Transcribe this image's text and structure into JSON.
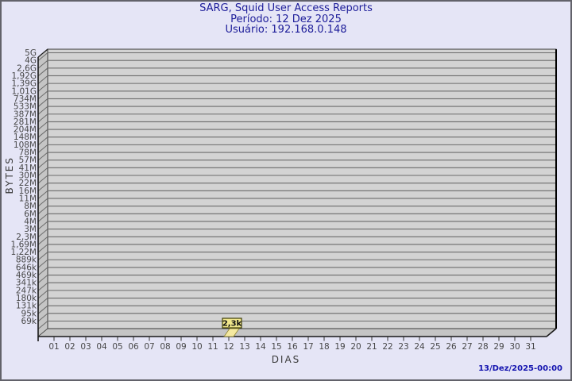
{
  "window": {
    "background": "#e5e5f6",
    "border_color": "#62626a"
  },
  "header": {
    "title": "SARG, Squid User Access Reports",
    "period": "Período: 12 Dez 2025",
    "user": "Usuário: 192.168.0.148",
    "color": "#1c1c99"
  },
  "footer": {
    "timestamp": "13/Dez/2025-00:00",
    "color": "#1515b0"
  },
  "chart_data": {
    "type": "bar",
    "title": "SARG, Squid User Access Reports",
    "subtitle": [
      "Período: 12 Dez 2025",
      "Usuário: 192.168.0.148"
    ],
    "xlabel": "DIAS",
    "ylabel": "BYTES",
    "scale": "log",
    "ylim_labels": [
      "69k",
      "5G"
    ],
    "grid": true,
    "legend": false,
    "categories": [
      "01",
      "02",
      "03",
      "04",
      "05",
      "06",
      "07",
      "08",
      "09",
      "10",
      "11",
      "12",
      "13",
      "14",
      "15",
      "16",
      "17",
      "18",
      "19",
      "20",
      "21",
      "22",
      "23",
      "24",
      "25",
      "26",
      "27",
      "28",
      "29",
      "30",
      "31"
    ],
    "values": [
      0,
      0,
      0,
      0,
      0,
      0,
      0,
      0,
      0,
      0,
      0,
      2300,
      0,
      0,
      0,
      0,
      0,
      0,
      0,
      0,
      0,
      0,
      0,
      0,
      0,
      0,
      0,
      0,
      0,
      0,
      0
    ],
    "bar_label": {
      "day": "12",
      "text": "2,3k"
    },
    "yticks": [
      "5G",
      "4G",
      "2,6G",
      "1,92G",
      "1,39G",
      "1,01G",
      "734M",
      "533M",
      "387M",
      "281M",
      "204M",
      "148M",
      "108M",
      "78M",
      "57M",
      "41M",
      "30M",
      "22M",
      "16M",
      "11M",
      "8M",
      "6M",
      "4M",
      "3M",
      "2,3M",
      "1,69M",
      "1,22M",
      "889k",
      "646k",
      "469k",
      "341k",
      "247k",
      "180k",
      "131k",
      "95k",
      "69k"
    ],
    "colors": {
      "plot_fill": "#d3d3d3",
      "wall_fill": "#c5c5c5",
      "grid_line": "#6b6b6b",
      "edge_dark": "#1a1a1a",
      "tick_text": "#474747",
      "bar_fill": "#f5e9a0",
      "bar_edge": "#8f8430",
      "bar_label_bg": "#f0e68c",
      "bar_label_border": "#3f3f08",
      "bar_label_text": "#111111"
    }
  }
}
